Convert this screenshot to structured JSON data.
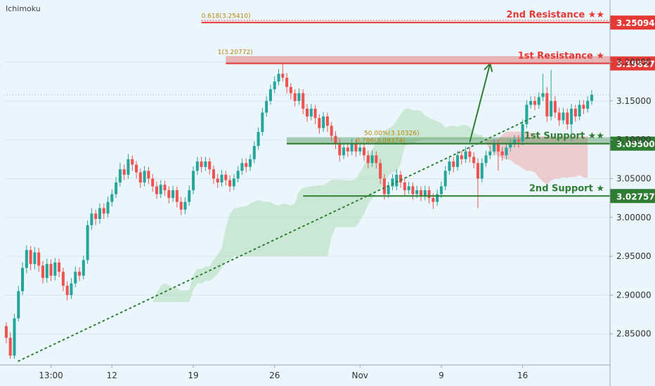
{
  "indicator": "Ichimoku",
  "colors": {
    "background": "#eaf6fc",
    "up": "#26a69a",
    "down": "#ef5350",
    "resistance": "#e53935",
    "support": "#2e7d32",
    "cloud_green": "#a5d6a7",
    "cloud_red": "#ef9a9a",
    "fib": "#b8860b"
  },
  "chart_data": {
    "type": "candlestick",
    "title": "",
    "xlabel": "",
    "ylabel": "",
    "x_ticks": [
      "13:00",
      "12",
      "19",
      "26",
      "Nov",
      "9",
      "16"
    ],
    "y_ticks": [
      "3.20000",
      "3.15000",
      "3.10000",
      "3.05000",
      "3.00000",
      "2.95000",
      "2.90000",
      "2.85000"
    ],
    "ylim": [
      2.81,
      3.28
    ],
    "n_slots": 149,
    "candles": [
      [
        2.86,
        2.845,
        2.865,
        2.838
      ],
      [
        2.845,
        2.822,
        2.852,
        2.818
      ],
      [
        2.822,
        2.87,
        2.876,
        2.818
      ],
      [
        2.87,
        2.905,
        2.912,
        2.866
      ],
      [
        2.905,
        2.935,
        2.942,
        2.9
      ],
      [
        2.935,
        2.958,
        2.964,
        2.928
      ],
      [
        2.958,
        2.94,
        2.963,
        2.932
      ],
      [
        2.94,
        2.955,
        2.962,
        2.933
      ],
      [
        2.955,
        2.938,
        2.961,
        2.93
      ],
      [
        2.938,
        2.922,
        2.944,
        2.915
      ],
      [
        2.922,
        2.94,
        2.947,
        2.916
      ],
      [
        2.94,
        2.925,
        2.946,
        2.918
      ],
      [
        2.925,
        2.942,
        2.948,
        2.919
      ],
      [
        2.942,
        2.93,
        2.947,
        2.923
      ],
      [
        2.93,
        2.912,
        2.935,
        2.905
      ],
      [
        2.912,
        2.9,
        2.918,
        2.893
      ],
      [
        2.9,
        2.915,
        2.922,
        2.895
      ],
      [
        2.915,
        2.93,
        2.937,
        2.91
      ],
      [
        2.93,
        2.925,
        2.936,
        2.918
      ],
      [
        2.925,
        2.945,
        2.951,
        2.92
      ],
      [
        2.945,
        2.99,
        2.996,
        2.94
      ],
      [
        2.99,
        3.005,
        3.012,
        2.984
      ],
      [
        3.005,
        2.998,
        3.01,
        2.99
      ],
      [
        2.998,
        3.012,
        3.018,
        2.992
      ],
      [
        3.012,
        3.005,
        3.018,
        2.998
      ],
      [
        3.005,
        3.02,
        3.027,
        3.0
      ],
      [
        3.02,
        3.03,
        3.036,
        3.014
      ],
      [
        3.03,
        3.045,
        3.052,
        3.025
      ],
      [
        3.045,
        3.062,
        3.07,
        3.04
      ],
      [
        3.062,
        3.055,
        3.068,
        3.048
      ],
      [
        3.055,
        3.075,
        3.082,
        3.05
      ],
      [
        3.075,
        3.068,
        3.08,
        3.06
      ],
      [
        3.068,
        3.058,
        3.073,
        3.05
      ],
      [
        3.058,
        3.045,
        3.063,
        3.038
      ],
      [
        3.045,
        3.06,
        3.066,
        3.04
      ],
      [
        3.06,
        3.05,
        3.065,
        3.043
      ],
      [
        3.05,
        3.04,
        3.056,
        3.033
      ],
      [
        3.04,
        3.03,
        3.046,
        3.024
      ],
      [
        3.03,
        3.042,
        3.048,
        3.025
      ],
      [
        3.042,
        3.035,
        3.047,
        3.028
      ],
      [
        3.035,
        3.025,
        3.04,
        3.018
      ],
      [
        3.025,
        3.035,
        3.041,
        3.02
      ],
      [
        3.035,
        3.02,
        3.04,
        3.013
      ],
      [
        3.02,
        3.01,
        3.026,
        3.003
      ],
      [
        3.01,
        3.02,
        3.026,
        3.004
      ],
      [
        3.02,
        3.035,
        3.041,
        3.015
      ],
      [
        3.035,
        3.06,
        3.066,
        3.03
      ],
      [
        3.06,
        3.072,
        3.078,
        3.055
      ],
      [
        3.072,
        3.065,
        3.078,
        3.058
      ],
      [
        3.065,
        3.072,
        3.078,
        3.06
      ],
      [
        3.072,
        3.062,
        3.077,
        3.055
      ],
      [
        3.062,
        3.05,
        3.067,
        3.043
      ],
      [
        3.05,
        3.045,
        3.056,
        3.038
      ],
      [
        3.045,
        3.055,
        3.061,
        3.04
      ],
      [
        3.055,
        3.048,
        3.06,
        3.041
      ],
      [
        3.048,
        3.04,
        3.054,
        3.033
      ],
      [
        3.04,
        3.05,
        3.056,
        3.035
      ],
      [
        3.05,
        3.06,
        3.066,
        3.045
      ],
      [
        3.06,
        3.07,
        3.076,
        3.055
      ],
      [
        3.07,
        3.065,
        3.076,
        3.058
      ],
      [
        3.065,
        3.075,
        3.081,
        3.06
      ],
      [
        3.075,
        3.092,
        3.098,
        3.07
      ],
      [
        3.092,
        3.11,
        3.116,
        3.087
      ],
      [
        3.11,
        3.135,
        3.141,
        3.105
      ],
      [
        3.135,
        3.15,
        3.156,
        3.13
      ],
      [
        3.15,
        3.165,
        3.171,
        3.145
      ],
      [
        3.165,
        3.175,
        3.182,
        3.16
      ],
      [
        3.175,
        3.185,
        3.191,
        3.17
      ],
      [
        3.185,
        3.18,
        3.198,
        3.175
      ],
      [
        3.18,
        3.168,
        3.186,
        3.16
      ],
      [
        3.168,
        3.16,
        3.173,
        3.152
      ],
      [
        3.16,
        3.15,
        3.165,
        3.143
      ],
      [
        3.15,
        3.16,
        3.166,
        3.145
      ],
      [
        3.16,
        3.14,
        3.165,
        3.133
      ],
      [
        3.14,
        3.13,
        3.146,
        3.123
      ],
      [
        3.13,
        3.14,
        3.146,
        3.125
      ],
      [
        3.14,
        3.128,
        3.145,
        3.12
      ],
      [
        3.128,
        3.115,
        3.133,
        3.108
      ],
      [
        3.115,
        3.13,
        3.136,
        3.11
      ],
      [
        3.13,
        3.118,
        3.135,
        3.11
      ],
      [
        3.118,
        3.105,
        3.123,
        3.098
      ],
      [
        3.105,
        3.095,
        3.111,
        3.088
      ],
      [
        3.095,
        3.08,
        3.101,
        3.072
      ],
      [
        3.08,
        3.09,
        3.096,
        3.075
      ],
      [
        3.09,
        3.085,
        3.096,
        3.078
      ],
      [
        3.085,
        3.095,
        3.101,
        3.08
      ],
      [
        3.095,
        3.085,
        3.1,
        3.078
      ],
      [
        3.085,
        3.09,
        3.096,
        3.08
      ],
      [
        3.09,
        3.08,
        3.095,
        3.073
      ],
      [
        3.08,
        3.07,
        3.086,
        3.063
      ],
      [
        3.07,
        3.08,
        3.086,
        3.065
      ],
      [
        3.08,
        3.07,
        3.085,
        3.063
      ],
      [
        3.07,
        3.05,
        3.075,
        3.043
      ],
      [
        3.05,
        3.03,
        3.056,
        3.023
      ],
      [
        3.03,
        3.04,
        3.046,
        3.025
      ],
      [
        3.04,
        3.05,
        3.056,
        3.035
      ],
      [
        3.04,
        3.055,
        3.062,
        3.035
      ],
      [
        3.055,
        3.045,
        3.06,
        3.038
      ],
      [
        3.045,
        3.035,
        3.051,
        3.028
      ],
      [
        3.035,
        3.04,
        3.046,
        3.03
      ],
      [
        3.04,
        3.03,
        3.045,
        3.023
      ],
      [
        3.03,
        3.035,
        3.041,
        3.025
      ],
      [
        3.035,
        3.028,
        3.04,
        3.021
      ],
      [
        3.028,
        3.035,
        3.041,
        3.022
      ],
      [
        3.035,
        3.025,
        3.04,
        3.018
      ],
      [
        3.025,
        3.02,
        3.031,
        3.011
      ],
      [
        3.02,
        3.03,
        3.036,
        3.015
      ],
      [
        3.03,
        3.04,
        3.046,
        3.025
      ],
      [
        3.04,
        3.06,
        3.066,
        3.035
      ],
      [
        3.06,
        3.072,
        3.078,
        3.055
      ],
      [
        3.072,
        3.065,
        3.078,
        3.058
      ],
      [
        3.065,
        3.08,
        3.086,
        3.06
      ],
      [
        3.08,
        3.075,
        3.086,
        3.068
      ],
      [
        3.075,
        3.085,
        3.091,
        3.07
      ],
      [
        3.085,
        3.078,
        3.09,
        3.071
      ],
      [
        3.078,
        3.07,
        3.084,
        3.063
      ],
      [
        3.07,
        3.05,
        3.076,
        3.012
      ],
      [
        3.05,
        3.07,
        3.076,
        3.045
      ],
      [
        3.07,
        3.08,
        3.086,
        3.065
      ],
      [
        3.08,
        3.085,
        3.092,
        3.075
      ],
      [
        3.085,
        3.095,
        3.101,
        3.08
      ],
      [
        3.095,
        3.085,
        3.1,
        3.06
      ],
      [
        3.085,
        3.08,
        3.091,
        3.073
      ],
      [
        3.08,
        3.09,
        3.096,
        3.075
      ],
      [
        3.09,
        3.095,
        3.101,
        3.085
      ],
      [
        3.095,
        3.1,
        3.106,
        3.09
      ],
      [
        3.1,
        3.098,
        3.106,
        3.09
      ],
      [
        3.098,
        3.12,
        3.126,
        3.093
      ],
      [
        3.12,
        3.145,
        3.151,
        3.115
      ],
      [
        3.145,
        3.15,
        3.156,
        3.14
      ],
      [
        3.15,
        3.145,
        3.156,
        3.138
      ],
      [
        3.145,
        3.155,
        3.161,
        3.14
      ],
      [
        3.155,
        3.16,
        3.185,
        3.15
      ],
      [
        3.16,
        3.13,
        3.168,
        3.123
      ],
      [
        3.13,
        3.15,
        3.19,
        3.125
      ],
      [
        3.15,
        3.135,
        3.156,
        3.128
      ],
      [
        3.135,
        3.125,
        3.141,
        3.118
      ],
      [
        3.125,
        3.135,
        3.141,
        3.12
      ],
      [
        3.135,
        3.12,
        3.14,
        3.113
      ],
      [
        3.12,
        3.14,
        3.146,
        3.098
      ],
      [
        3.14,
        3.13,
        3.145,
        3.123
      ],
      [
        3.13,
        3.145,
        3.151,
        3.125
      ],
      [
        3.145,
        3.14,
        3.151,
        3.133
      ],
      [
        3.14,
        3.15,
        3.156,
        3.135
      ],
      [
        3.15,
        3.158,
        3.164,
        3.145
      ]
    ],
    "last_price": 3.158,
    "levels": [
      {
        "name": "2nd Resistance ★★",
        "value": 3.25094,
        "label": "3.25094",
        "kind": "resistance"
      },
      {
        "name": "1st Resistance ★",
        "value": 3.19827,
        "label": "3.19827",
        "kind": "resistance"
      },
      {
        "name": "1st Support ★★",
        "value": 3.095,
        "label": "3.09500",
        "kind": "support"
      },
      {
        "name": "2nd Support ★",
        "value": 3.02757,
        "label": "3.02757",
        "kind": "support"
      }
    ],
    "fib_labels": [
      {
        "text": "0.618(3.25410)",
        "value": 3.2541
      },
      {
        "text": "1(3.20772)",
        "value": 3.20772
      },
      {
        "text": "50.00%(3.10326)",
        "value": 3.10326
      },
      {
        "text": "0.786(3.09374)",
        "value": 3.09374
      }
    ],
    "trendline": {
      "from": [
        3,
        2.815
      ],
      "to": [
        130,
        3.13
      ]
    },
    "arrow": {
      "from": [
        114,
        3.097
      ],
      "to": [
        119,
        3.198
      ]
    },
    "zones": [
      {
        "kind": "resistance",
        "from_slot": 54,
        "y_low": 3.19827,
        "y_high": 3.20772
      },
      {
        "kind": "support",
        "from_slot": 69,
        "y_low": 3.09374,
        "y_high": 3.10326
      }
    ]
  }
}
